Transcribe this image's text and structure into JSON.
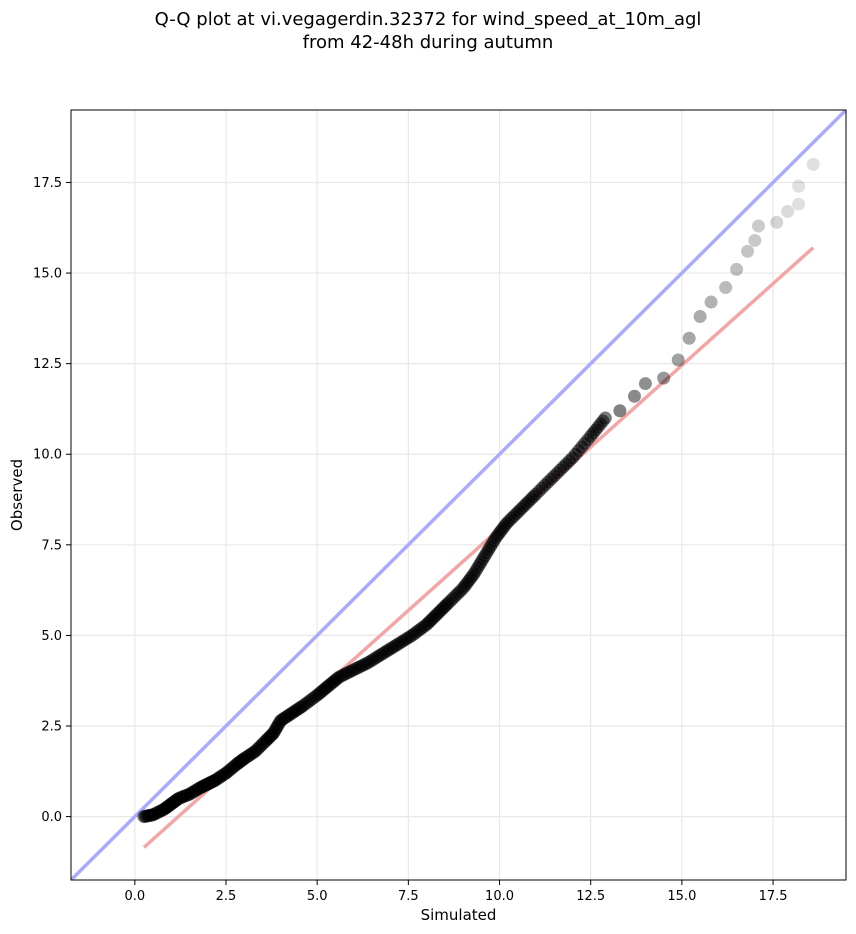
{
  "title_lines": [
    "Q-Q plot at vi.vegagerdin.32372 for wind_speed_at_10m_agl",
    "from 42-48h during autumn"
  ],
  "chart_data": {
    "type": "scatter",
    "title": "Q-Q plot at vi.vegagerdin.32372 for wind_speed_at_10m_agl\nfrom 42-48h during autumn",
    "xlabel": "Simulated",
    "ylabel": "Observed",
    "xlim": [
      -1.75,
      19.5
    ],
    "ylim": [
      -1.75,
      19.5
    ],
    "xticks": [
      0.0,
      2.5,
      5.0,
      7.5,
      10.0,
      12.5,
      15.0,
      17.5
    ],
    "yticks": [
      0.0,
      2.5,
      5.0,
      7.5,
      10.0,
      12.5,
      15.0,
      17.5
    ],
    "xtick_labels": [
      "0.0",
      "2.5",
      "5.0",
      "7.5",
      "10.0",
      "12.5",
      "15.0",
      "17.5"
    ],
    "ytick_labels": [
      "0.0",
      "2.5",
      "5.0",
      "7.5",
      "10.0",
      "12.5",
      "15.0",
      "17.5"
    ],
    "grid": true,
    "point_color": "#000000",
    "identity_line": {
      "color": "#aaaaff",
      "from": [
        -1.75,
        -1.75
      ],
      "to": [
        19.5,
        19.5
      ]
    },
    "fit_line": {
      "color": "#f4a6a6",
      "from": [
        0.25,
        -0.85
      ],
      "to": [
        18.6,
        15.7
      ]
    },
    "quantile_curve": [
      [
        0.25,
        0.0
      ],
      [
        0.5,
        0.05
      ],
      [
        0.8,
        0.2
      ],
      [
        1.0,
        0.35
      ],
      [
        1.2,
        0.5
      ],
      [
        1.5,
        0.62
      ],
      [
        1.8,
        0.8
      ],
      [
        2.0,
        0.9
      ],
      [
        2.2,
        1.0
      ],
      [
        2.5,
        1.2
      ],
      [
        2.8,
        1.45
      ],
      [
        3.0,
        1.6
      ],
      [
        3.3,
        1.8
      ],
      [
        3.6,
        2.1
      ],
      [
        3.8,
        2.3
      ],
      [
        4.0,
        2.65
      ],
      [
        4.3,
        2.85
      ],
      [
        4.6,
        3.05
      ],
      [
        5.0,
        3.35
      ],
      [
        5.3,
        3.6
      ],
      [
        5.6,
        3.85
      ],
      [
        6.0,
        4.05
      ],
      [
        6.4,
        4.25
      ],
      [
        6.8,
        4.5
      ],
      [
        7.2,
        4.75
      ],
      [
        7.6,
        5.0
      ],
      [
        8.0,
        5.3
      ],
      [
        8.3,
        5.6
      ],
      [
        8.6,
        5.9
      ],
      [
        9.0,
        6.3
      ],
      [
        9.3,
        6.7
      ],
      [
        9.6,
        7.2
      ],
      [
        9.9,
        7.7
      ],
      [
        10.2,
        8.1
      ],
      [
        10.6,
        8.5
      ],
      [
        11.0,
        8.9
      ],
      [
        11.5,
        9.4
      ],
      [
        12.0,
        9.9
      ],
      [
        12.5,
        10.5
      ],
      [
        12.9,
        11.0
      ],
      [
        13.3,
        11.2
      ],
      [
        13.7,
        11.6
      ],
      [
        14.0,
        11.95
      ],
      [
        14.5,
        12.1
      ],
      [
        14.9,
        12.6
      ],
      [
        15.2,
        13.2
      ],
      [
        15.5,
        13.8
      ],
      [
        15.8,
        14.2
      ],
      [
        16.2,
        14.6
      ],
      [
        16.5,
        15.1
      ],
      [
        16.8,
        15.6
      ],
      [
        17.0,
        15.9
      ],
      [
        17.1,
        16.3
      ],
      [
        17.6,
        16.4
      ],
      [
        17.9,
        16.7
      ],
      [
        18.2,
        16.9
      ],
      [
        18.2,
        17.4
      ],
      [
        18.6,
        18.0
      ]
    ]
  }
}
